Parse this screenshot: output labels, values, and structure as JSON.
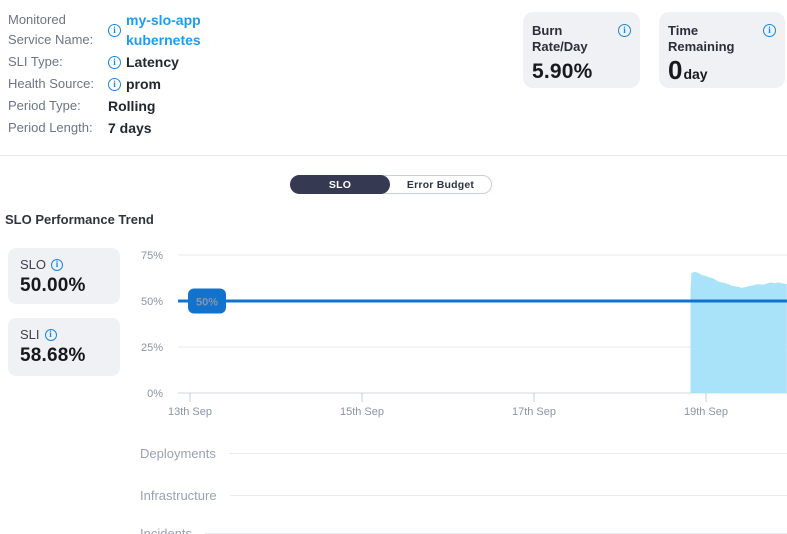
{
  "info_panel": {
    "rows": [
      {
        "label": "Monitored Service Name:",
        "value": "my-slo-app kubernetes",
        "has_info_icon": true,
        "is_link": true
      },
      {
        "label": "SLI Type:",
        "value": "Latency",
        "has_info_icon": true,
        "is_link": false
      },
      {
        "label": "Health Source:",
        "value": "prom",
        "has_info_icon": true,
        "is_link": false
      },
      {
        "label": "Period Type:",
        "value": "Rolling",
        "has_info_icon": false,
        "is_link": false
      },
      {
        "label": "Period Length:",
        "value": "7 days",
        "has_info_icon": false,
        "is_link": false
      }
    ]
  },
  "stat_cards": [
    {
      "title": "Burn Rate/Day",
      "value": "5.90%",
      "unit": ""
    },
    {
      "title": "Time Remaining",
      "value": "0",
      "unit": "day"
    }
  ],
  "tabs": [
    {
      "label": "SLO",
      "selected": true
    },
    {
      "label": "Error Budget",
      "selected": false
    }
  ],
  "section_title": "SLO Performance Trend",
  "metric_cards": [
    {
      "label": "SLO",
      "value": "50.00%"
    },
    {
      "label": "SLI",
      "value": "58.68%"
    }
  ],
  "chart_data": {
    "type": "area",
    "title": "SLO Performance Trend",
    "x_tick_labels": [
      "13th Sep",
      "15th Sep",
      "17th Sep",
      "19th Sep"
    ],
    "x_tick_days": [
      0,
      2,
      4,
      6
    ],
    "x_range_days": [
      -0.14,
      6.94
    ],
    "y_ticks_pct": [
      0,
      25,
      50,
      75
    ],
    "y_max_pct": 83,
    "grid": true,
    "slo_target_pct": 50,
    "slo_target_label": "50%",
    "target_line_color": "#1173cd",
    "series": [
      {
        "name": "SLI",
        "color": "#a8e3f9",
        "points_day_pct": [
          [
            5.82,
            55.0
          ],
          [
            5.83,
            65.2
          ],
          [
            5.87,
            65.9
          ],
          [
            5.91,
            65.2
          ],
          [
            5.95,
            64.2
          ],
          [
            5.99,
            63.7
          ],
          [
            6.03,
            63.0
          ],
          [
            6.07,
            62.5
          ],
          [
            6.1,
            61.9
          ],
          [
            6.14,
            60.6
          ],
          [
            6.18,
            60.1
          ],
          [
            6.22,
            59.8
          ],
          [
            6.26,
            59.2
          ],
          [
            6.3,
            58.3
          ],
          [
            6.34,
            58.0
          ],
          [
            6.38,
            57.6
          ],
          [
            6.41,
            57.1
          ],
          [
            6.45,
            57.4
          ],
          [
            6.49,
            58.0
          ],
          [
            6.53,
            58.3
          ],
          [
            6.57,
            58.8
          ],
          [
            6.61,
            59.2
          ],
          [
            6.65,
            58.8
          ],
          [
            6.69,
            59.2
          ],
          [
            6.72,
            59.7
          ],
          [
            6.76,
            60.1
          ],
          [
            6.8,
            59.7
          ],
          [
            6.84,
            60.1
          ],
          [
            6.88,
            59.7
          ],
          [
            6.92,
            59.4
          ],
          [
            6.94,
            59.2
          ]
        ]
      }
    ]
  },
  "timeline_rows": [
    {
      "label": "Deployments"
    },
    {
      "label": "Infrastructure"
    },
    {
      "label": "Incidents"
    }
  ],
  "colors": {
    "target_blue": "#1173cd",
    "area_blue": "#a8e3f9",
    "link_blue": "#1a9df2",
    "dark_tab": "#353a52",
    "card_bg": "#eff1f5",
    "gridline": "#e7e9ee",
    "axis_line": "#d3d7de",
    "tick_mark": "#c7ccd5",
    "tick_label": "#8b93a6"
  }
}
